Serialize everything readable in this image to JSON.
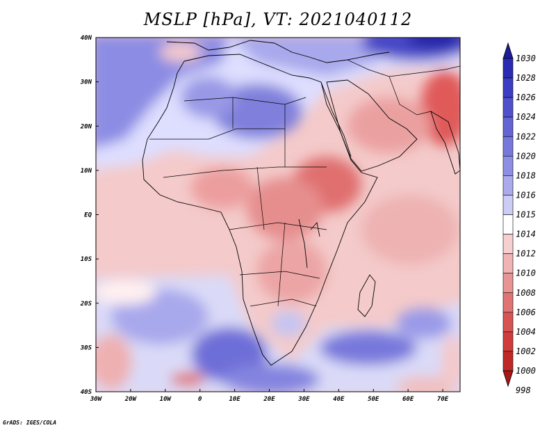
{
  "title": "MSLP [hPa], VT: 2021040112",
  "credit": "GrADS: IGES/COLA",
  "lat_labels": [
    "40N",
    "30N",
    "20N",
    "10N",
    "EQ",
    "10S",
    "20S",
    "30S",
    "40S"
  ],
  "lon_labels": [
    "30W",
    "20W",
    "10W",
    "0",
    "10E",
    "20E",
    "30E",
    "40E",
    "50E",
    "60E",
    "70E"
  ],
  "colorbar": {
    "labels": [
      "1030",
      "1028",
      "1026",
      "1024",
      "1022",
      "1020",
      "1018",
      "1016",
      "1015",
      "1014",
      "1012",
      "1010",
      "1008",
      "1006",
      "1004",
      "1002",
      "1000",
      "998"
    ],
    "colors": [
      "#1c1c9c",
      "#2a2ab4",
      "#3c3cc4",
      "#5050cc",
      "#6464d4",
      "#7878dc",
      "#8e8ee4",
      "#aaaaec",
      "#ccccf4",
      "#ffffff",
      "#f6d0d0",
      "#f0b4b4",
      "#e89494",
      "#e07474",
      "#d85454",
      "#d03c3c",
      "#c02828",
      "#a81818"
    ]
  },
  "palette": {
    "low": "#c02828",
    "mid": "#ffffff",
    "high": "#2a2ab4"
  }
}
